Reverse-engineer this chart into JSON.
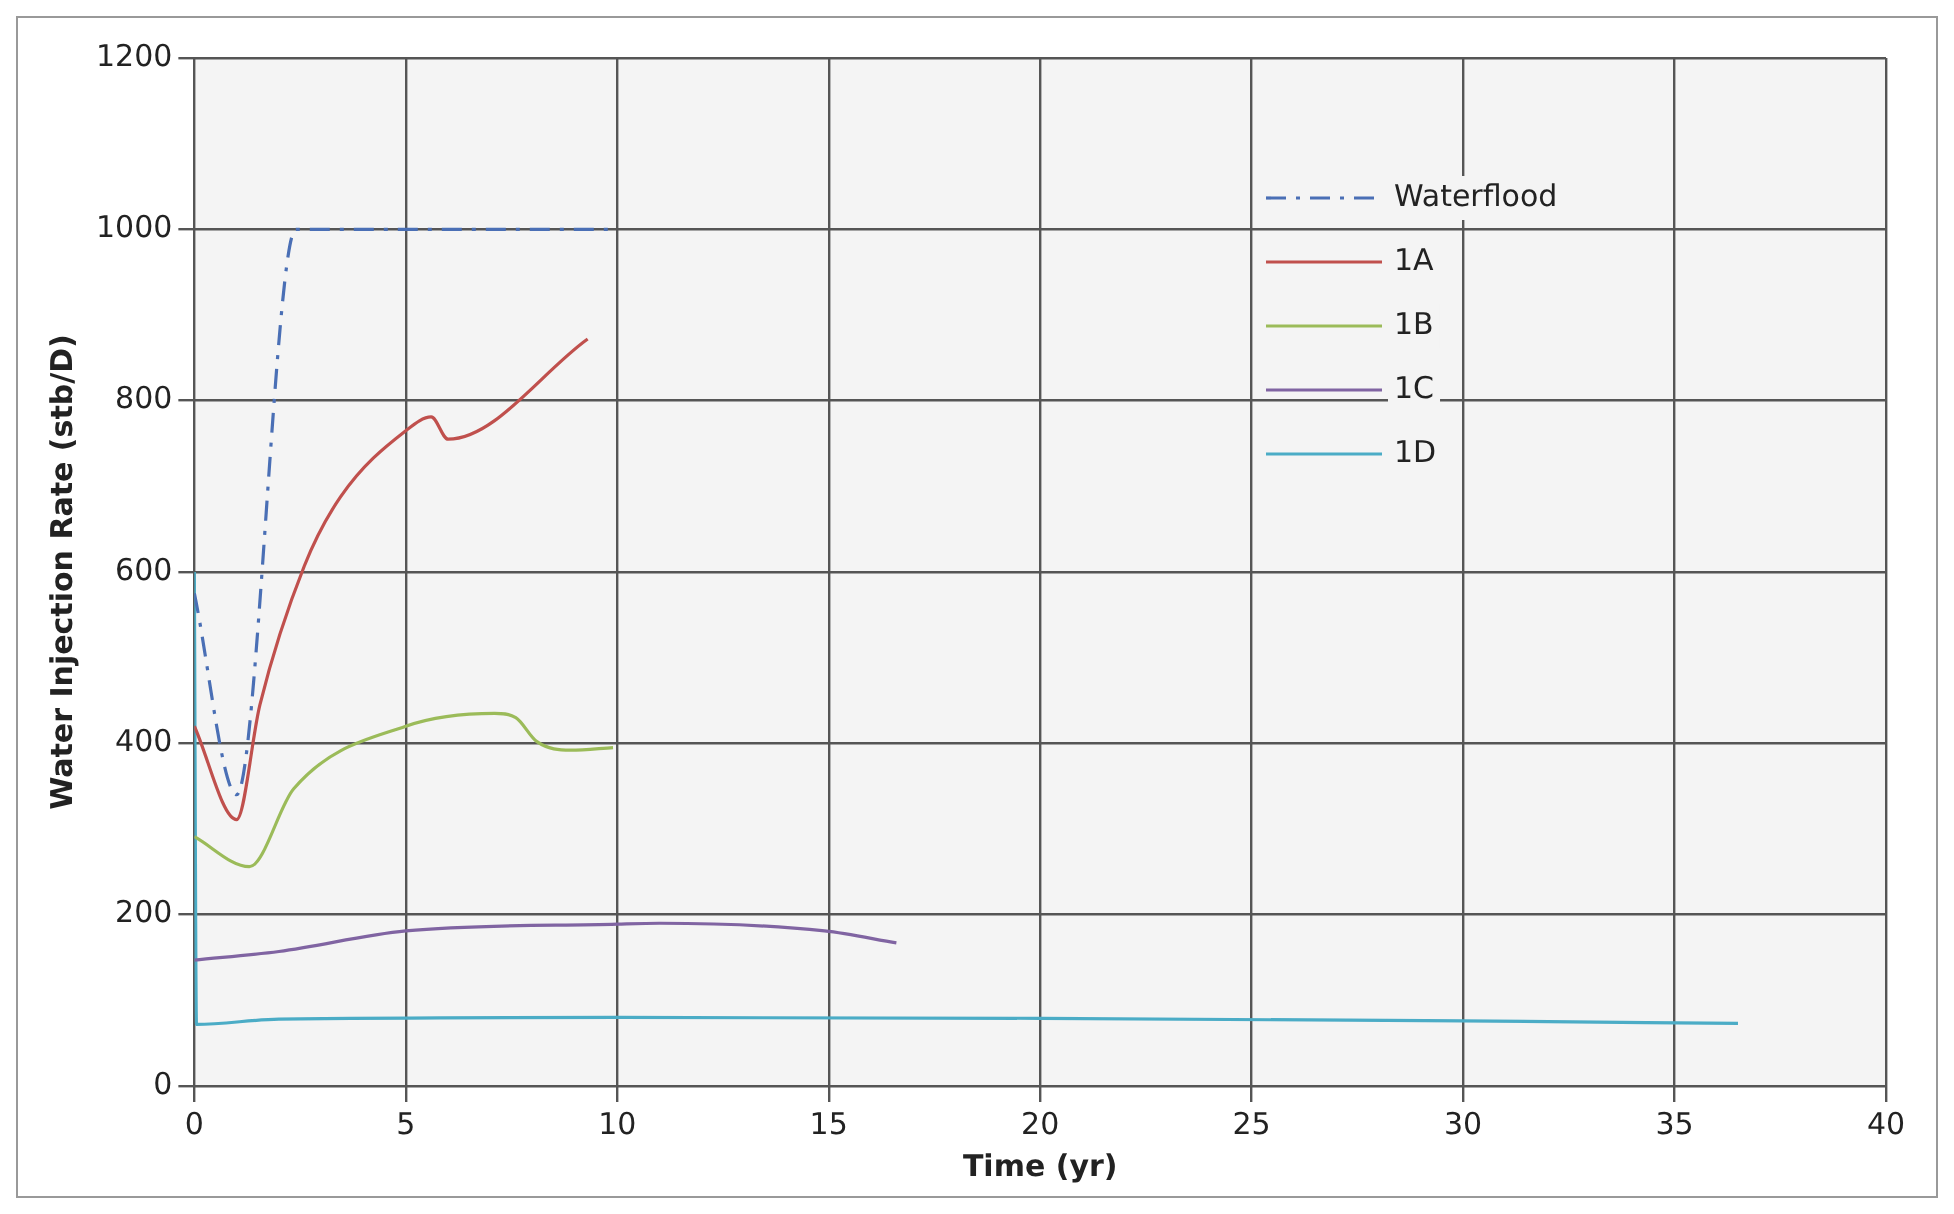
{
  "chart_data": {
    "type": "line",
    "xlabel": "Time (yr)",
    "ylabel": "Water Injection Rate (stb/D)",
    "xlim": [
      0,
      40
    ],
    "xticks": [
      0,
      5,
      10,
      15,
      20,
      25,
      30,
      35,
      40
    ],
    "ylim": [
      0,
      1200
    ],
    "yticks": [
      0,
      200,
      400,
      600,
      800,
      1000,
      1200
    ],
    "grid": true,
    "legend": "top right",
    "marker": "none",
    "series": [
      {
        "name": "Waterflood",
        "color": "#4a6fb5",
        "line_style": "dashed",
        "x": [
          0,
          1.0,
          2.4,
          5,
          9.9
        ],
        "values": [
          575,
          340,
          1000,
          1000,
          1000
        ]
      },
      {
        "name": "1A",
        "color": "#c0504d",
        "line_style": "solid",
        "x": [
          0,
          1.0,
          1.55,
          2.6,
          3.46,
          5,
          5.6,
          6.0,
          9.3
        ],
        "values": [
          420,
          311,
          445,
          607,
          688,
          765,
          781,
          755,
          872
        ]
      },
      {
        "name": "1B",
        "color": "#9bbb59",
        "line_style": "solid",
        "x": [
          0,
          1.3,
          2.35,
          5,
          7.1,
          7.6,
          8.1,
          8.9,
          9.9
        ],
        "values": [
          291,
          256,
          347,
          420,
          435,
          430,
          402,
          392,
          395
        ]
      },
      {
        "name": "1C",
        "color": "#8064a2",
        "line_style": "solid",
        "x": [
          0,
          2.0,
          5,
          10,
          11,
          14.9,
          16.6
        ],
        "values": [
          147,
          157,
          181,
          189,
          190,
          181,
          167
        ]
      },
      {
        "name": "1D",
        "color": "#4bacc6",
        "line_style": "solid",
        "x": [
          0,
          0.05,
          2,
          10,
          20,
          30,
          36.5
        ],
        "values": [
          600,
          72,
          78,
          80,
          79,
          76,
          73
        ]
      }
    ]
  }
}
